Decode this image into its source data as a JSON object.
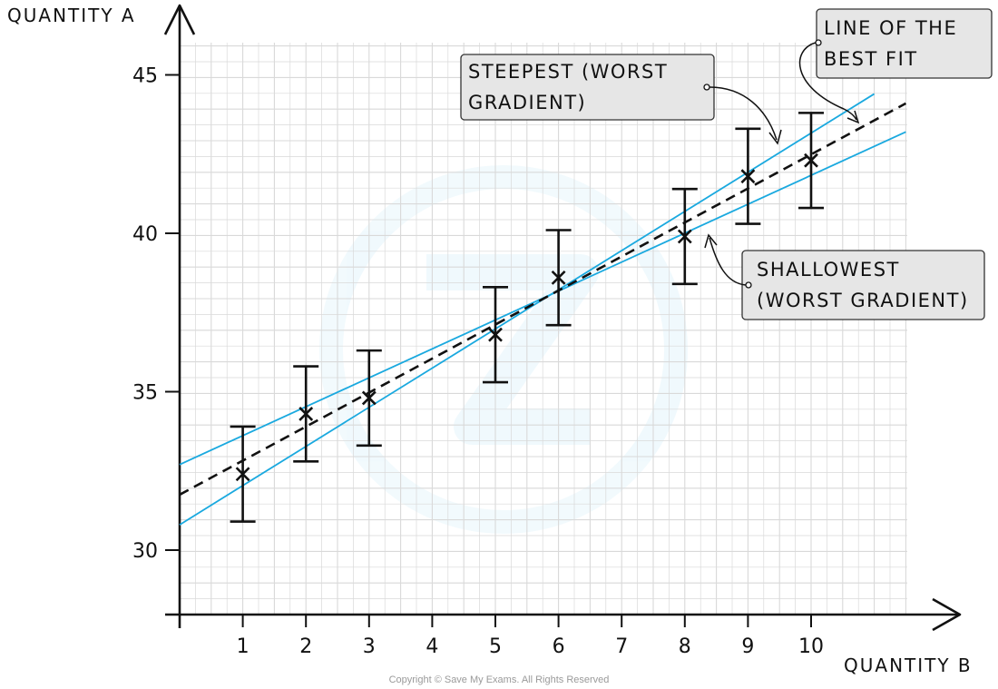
{
  "chart_data": {
    "type": "scatter",
    "xlabel": "QUANTITY B",
    "ylabel": "QUANTITY A",
    "x_ticks": [
      1,
      2,
      3,
      4,
      5,
      6,
      7,
      8,
      9,
      10
    ],
    "y_ticks": [
      30,
      35,
      40,
      45
    ],
    "xlim": [
      0,
      11.5
    ],
    "ylim": [
      28,
      46
    ],
    "grid": true,
    "points": [
      {
        "x": 1,
        "y": 32.4,
        "err": 1.5
      },
      {
        "x": 2,
        "y": 34.3,
        "err": 1.5
      },
      {
        "x": 3,
        "y": 34.8,
        "err": 1.5
      },
      {
        "x": 5,
        "y": 36.8,
        "err": 1.5
      },
      {
        "x": 6,
        "y": 38.6,
        "err": 1.5
      },
      {
        "x": 8,
        "y": 39.9,
        "err": 1.5
      },
      {
        "x": 9,
        "y": 41.8,
        "err": 1.5
      },
      {
        "x": 10,
        "y": 42.3,
        "err": 1.5
      }
    ],
    "lines": [
      {
        "name": "LINE OF THE BEST FIT",
        "style": "dashed",
        "color": "#111111",
        "x": [
          0,
          11.5
        ],
        "y": [
          31.75,
          44.1
        ]
      },
      {
        "name": "STEEPEST (WORST GRADIENT)",
        "style": "solid",
        "color": "#1aa9df",
        "x": [
          0,
          11
        ],
        "y": [
          30.8,
          44.4
        ]
      },
      {
        "name": "SHALLOWEST (WORST GRADIENT)",
        "style": "solid",
        "color": "#1aa9df",
        "x": [
          0,
          11.5
        ],
        "y": [
          32.7,
          43.2
        ]
      }
    ],
    "annotations": [
      {
        "text": [
          "STEEPEST (WORST",
          "GRADIENT)"
        ],
        "target": "STEEPEST (WORST GRADIENT)"
      },
      {
        "text": [
          "LINE OF THE",
          "BEST FIT"
        ],
        "target": "LINE OF THE BEST FIT"
      },
      {
        "text": [
          "SHALLOWEST",
          "(WORST GRADIENT)"
        ],
        "target": "SHALLOWEST (WORST GRADIENT)"
      }
    ]
  },
  "copyright": "Copyright © Save My Exams. All Rights Reserved",
  "colors": {
    "fit_line": "#111111",
    "worst_lines": "#1aa9df",
    "grid": "#d9d9d9",
    "callout_bg": "#e6e6e6"
  }
}
